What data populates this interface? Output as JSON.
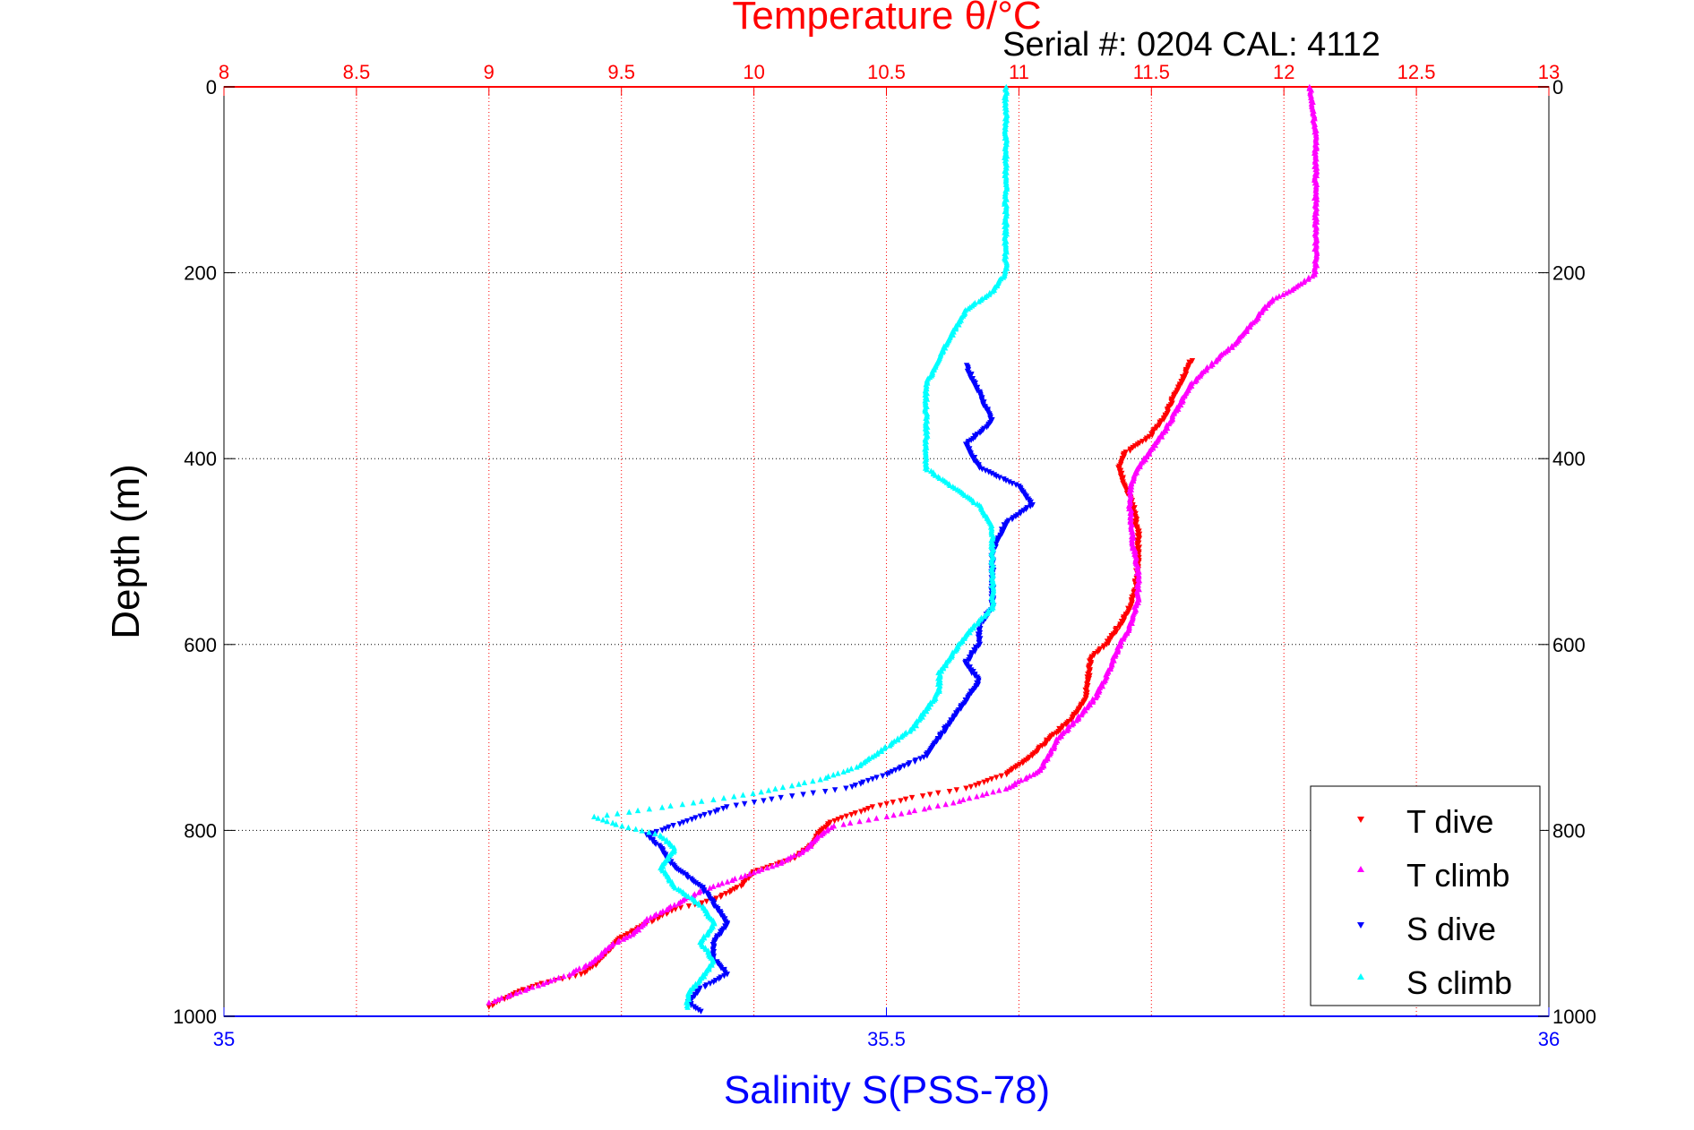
{
  "serial_label": "Serial #: 0204  CAL: 4112",
  "chart_data": {
    "type": "scatter",
    "title": "Temperature θ/°C",
    "xlabel_top": "Temperature θ/°C",
    "xlabel_bottom": "Salinity S(PSS-78)",
    "ylabel": "Depth (m)",
    "y_reversed": true,
    "grid": true,
    "legend_position": "bottom-right",
    "axes": {
      "temperature": {
        "lim": [
          8,
          13
        ],
        "ticks": [
          8,
          8.5,
          9,
          9.5,
          10,
          10.5,
          11,
          11.5,
          12,
          12.5,
          13
        ],
        "tick_labels": [
          "8",
          "8.5",
          "9",
          "9.5",
          "10",
          "10.5",
          "11",
          "11.5",
          "12",
          "12.5",
          "13"
        ],
        "color": "#ff0000"
      },
      "salinity": {
        "lim": [
          35,
          36
        ],
        "ticks": [
          35,
          35.5,
          36
        ],
        "tick_labels": [
          "35",
          "35.5",
          "36"
        ],
        "color": "#0000ff"
      },
      "depth": {
        "lim": [
          0,
          1000
        ],
        "ticks": [
          0,
          200,
          400,
          600,
          800,
          1000
        ],
        "tick_labels": [
          "0",
          "200",
          "400",
          "600",
          "800",
          "1000"
        ]
      }
    },
    "series": [
      {
        "name": "T dive",
        "axis": "temperature",
        "color": "#ff0000",
        "marker": "triangle-down",
        "points": [
          [
            11.65,
            295
          ],
          [
            11.6,
            325
          ],
          [
            11.55,
            355
          ],
          [
            11.5,
            375
          ],
          [
            11.45,
            385
          ],
          [
            11.4,
            395
          ],
          [
            11.38,
            410
          ],
          [
            11.4,
            430
          ],
          [
            11.43,
            450
          ],
          [
            11.45,
            480
          ],
          [
            11.45,
            510
          ],
          [
            11.44,
            540
          ],
          [
            11.42,
            560
          ],
          [
            11.38,
            580
          ],
          [
            11.33,
            600
          ],
          [
            11.27,
            615
          ],
          [
            11.26,
            640
          ],
          [
            11.25,
            660
          ],
          [
            11.2,
            680
          ],
          [
            11.12,
            700
          ],
          [
            11.05,
            720
          ],
          [
            10.95,
            740
          ],
          [
            10.8,
            755
          ],
          [
            10.6,
            765
          ],
          [
            10.45,
            775
          ],
          [
            10.3,
            790
          ],
          [
            10.25,
            800
          ],
          [
            10.22,
            815
          ],
          [
            10.15,
            830
          ],
          [
            10.0,
            845
          ],
          [
            9.95,
            860
          ],
          [
            9.85,
            875
          ],
          [
            9.7,
            885
          ],
          [
            9.6,
            900
          ],
          [
            9.5,
            915
          ],
          [
            9.45,
            930
          ],
          [
            9.4,
            945
          ],
          [
            9.35,
            955
          ],
          [
            9.2,
            965
          ],
          [
            9.1,
            975
          ],
          [
            9.0,
            990
          ]
        ]
      },
      {
        "name": "T climb",
        "axis": "temperature",
        "color": "#ff00ff",
        "marker": "triangle-up",
        "points": [
          [
            12.1,
            0
          ],
          [
            12.12,
            50
          ],
          [
            12.12,
            100
          ],
          [
            12.12,
            150
          ],
          [
            12.12,
            200
          ],
          [
            12.05,
            215
          ],
          [
            11.95,
            230
          ],
          [
            11.88,
            255
          ],
          [
            11.8,
            280
          ],
          [
            11.72,
            300
          ],
          [
            11.65,
            320
          ],
          [
            11.6,
            345
          ],
          [
            11.55,
            370
          ],
          [
            11.5,
            390
          ],
          [
            11.45,
            410
          ],
          [
            11.42,
            430
          ],
          [
            11.42,
            460
          ],
          [
            11.43,
            490
          ],
          [
            11.45,
            520
          ],
          [
            11.45,
            550
          ],
          [
            11.42,
            580
          ],
          [
            11.38,
            600
          ],
          [
            11.35,
            620
          ],
          [
            11.32,
            640
          ],
          [
            11.28,
            660
          ],
          [
            11.22,
            680
          ],
          [
            11.15,
            700
          ],
          [
            11.12,
            715
          ],
          [
            11.08,
            735
          ],
          [
            10.95,
            755
          ],
          [
            10.75,
            770
          ],
          [
            10.5,
            785
          ],
          [
            10.3,
            795
          ],
          [
            10.25,
            805
          ],
          [
            10.2,
            820
          ],
          [
            10.1,
            835
          ],
          [
            9.95,
            850
          ],
          [
            9.8,
            865
          ],
          [
            9.7,
            880
          ],
          [
            9.6,
            895
          ],
          [
            9.55,
            910
          ],
          [
            9.45,
            925
          ],
          [
            9.4,
            940
          ],
          [
            9.3,
            955
          ],
          [
            9.2,
            965
          ],
          [
            9.1,
            975
          ],
          [
            9.0,
            985
          ]
        ]
      },
      {
        "name": "S dive",
        "axis": "salinity",
        "color": "#0000ff",
        "marker": "triangle-down",
        "points": [
          [
            35.56,
            300
          ],
          [
            35.57,
            330
          ],
          [
            35.58,
            360
          ],
          [
            35.56,
            385
          ],
          [
            35.57,
            410
          ],
          [
            35.6,
            430
          ],
          [
            35.61,
            450
          ],
          [
            35.59,
            470
          ],
          [
            35.58,
            500
          ],
          [
            35.58,
            530
          ],
          [
            35.58,
            560
          ],
          [
            35.57,
            580
          ],
          [
            35.57,
            600
          ],
          [
            35.56,
            620
          ],
          [
            35.57,
            640
          ],
          [
            35.56,
            660
          ],
          [
            35.55,
            680
          ],
          [
            35.54,
            700
          ],
          [
            35.53,
            720
          ],
          [
            35.5,
            740
          ],
          [
            35.47,
            755
          ],
          [
            35.42,
            765
          ],
          [
            35.38,
            775
          ],
          [
            35.36,
            785
          ],
          [
            35.34,
            795
          ],
          [
            35.32,
            805
          ],
          [
            35.33,
            820
          ],
          [
            35.34,
            840
          ],
          [
            35.36,
            860
          ],
          [
            35.37,
            880
          ],
          [
            35.38,
            900
          ],
          [
            35.37,
            920
          ],
          [
            35.37,
            940
          ],
          [
            35.38,
            955
          ],
          [
            35.36,
            970
          ],
          [
            35.35,
            985
          ],
          [
            35.36,
            995
          ]
        ]
      },
      {
        "name": "S climb",
        "axis": "salinity",
        "color": "#00ffff",
        "marker": "triangle-up",
        "points": [
          [
            35.59,
            0
          ],
          [
            35.59,
            50
          ],
          [
            35.59,
            100
          ],
          [
            35.59,
            150
          ],
          [
            35.59,
            200
          ],
          [
            35.58,
            220
          ],
          [
            35.56,
            240
          ],
          [
            35.55,
            265
          ],
          [
            35.54,
            290
          ],
          [
            35.53,
            320
          ],
          [
            35.53,
            350
          ],
          [
            35.53,
            380
          ],
          [
            35.53,
            410
          ],
          [
            35.55,
            430
          ],
          [
            35.57,
            450
          ],
          [
            35.58,
            475
          ],
          [
            35.58,
            500
          ],
          [
            35.58,
            530
          ],
          [
            35.58,
            560
          ],
          [
            35.56,
            590
          ],
          [
            35.55,
            610
          ],
          [
            35.54,
            630
          ],
          [
            35.54,
            650
          ],
          [
            35.53,
            670
          ],
          [
            35.52,
            690
          ],
          [
            35.5,
            710
          ],
          [
            35.48,
            730
          ],
          [
            35.45,
            745
          ],
          [
            35.4,
            760
          ],
          [
            35.33,
            775
          ],
          [
            35.28,
            785
          ],
          [
            35.3,
            795
          ],
          [
            35.33,
            805
          ],
          [
            35.34,
            820
          ],
          [
            35.33,
            840
          ],
          [
            35.34,
            860
          ],
          [
            35.36,
            880
          ],
          [
            35.37,
            900
          ],
          [
            35.36,
            920
          ],
          [
            35.37,
            940
          ],
          [
            35.36,
            960
          ],
          [
            35.35,
            975
          ],
          [
            35.35,
            990
          ]
        ]
      }
    ]
  }
}
